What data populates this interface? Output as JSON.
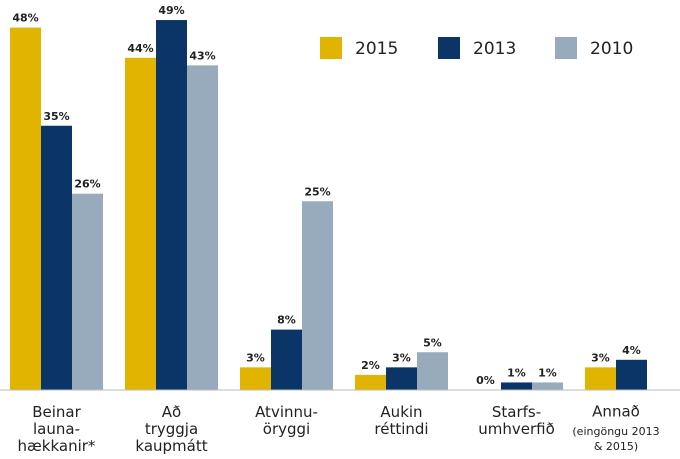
{
  "chart_data": {
    "type": "bar",
    "categories": [
      "Beinar\nlauna-\nhækkanir*",
      "Að\ntryggja\nkaupmátt",
      "Atvinnu-\nöryggi",
      "Aukin\nréttindi",
      "Starfs-\numhverfið",
      "Annað"
    ],
    "annotation": "(eingöngu 2013\n& 2015)",
    "series": [
      {
        "name": "2015",
        "color": "#e0b400",
        "values": [
          48,
          44,
          3,
          2,
          0,
          3
        ],
        "value_labels": [
          "48%",
          "44%",
          "3%",
          "2%",
          "0%",
          "3%"
        ]
      },
      {
        "name": "2013",
        "color": "#0b3567",
        "values": [
          35,
          49,
          8,
          3,
          1,
          4
        ],
        "value_labels": [
          "35%",
          "49%",
          "8%",
          "3%",
          "1%",
          "4%"
        ]
      },
      {
        "name": "2010",
        "color": "#98abbc",
        "values": [
          26,
          43,
          25,
          5,
          1,
          null
        ],
        "value_labels": [
          "26%",
          "43%",
          "25%",
          "5%",
          "1%",
          null
        ]
      }
    ],
    "ylim": [
      0,
      50
    ]
  }
}
